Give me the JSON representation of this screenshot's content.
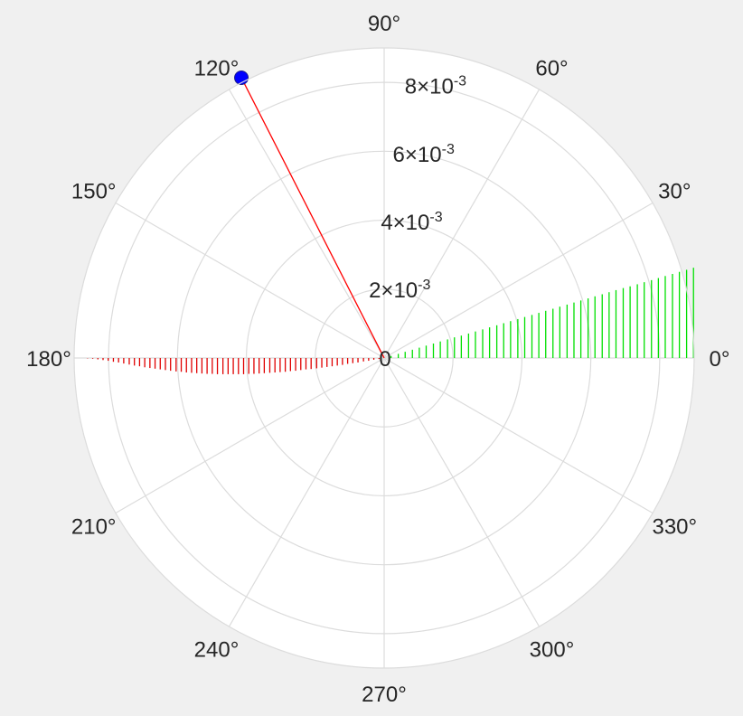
{
  "chart_data": {
    "type": "polar",
    "angle_unit": "°",
    "theta_ticks": [
      0,
      30,
      60,
      90,
      120,
      150,
      180,
      210,
      240,
      270,
      300,
      330
    ],
    "theta_tick_labels": [
      "0°",
      "30°",
      "60°",
      "90°",
      "120°",
      "150°",
      "180°",
      "210°",
      "240°",
      "270°",
      "300°",
      "330°"
    ],
    "r_ticks": [
      0,
      0.002,
      0.004,
      0.006,
      0.008
    ],
    "r_tick_labels": [
      {
        "mantissa": "0",
        "exp": ""
      },
      {
        "mantissa": "2×10",
        "exp": "-3"
      },
      {
        "mantissa": "4×10",
        "exp": "-3"
      },
      {
        "mantissa": "6×10",
        "exp": "-3"
      },
      {
        "mantissa": "8×10",
        "exp": "-3"
      }
    ],
    "rlim": [
      0,
      0.009
    ],
    "grid": true,
    "colors": {
      "positive_stems": "#00e000",
      "negative_stems": "#e00000",
      "vector": "#ff0000",
      "marker": "#0000ff",
      "grid": "#dcdcdc",
      "plot_background": "#ffffff",
      "figure_background": "#f0f0f0"
    },
    "series": [
      {
        "style": "stem",
        "color": "green",
        "x": [
          0.0002,
          0.00041,
          0.00061,
          0.00082,
          0.00102,
          0.00122,
          0.00143,
          0.00163,
          0.00184,
          0.00204,
          0.00224,
          0.00245,
          0.00265,
          0.00286,
          0.00306,
          0.00327,
          0.00347,
          0.00367,
          0.00388,
          0.00408,
          0.00429,
          0.00449,
          0.00469,
          0.0049,
          0.0051,
          0.00531,
          0.00551,
          0.00571,
          0.00592,
          0.00612,
          0.00633,
          0.00653,
          0.00673,
          0.00694,
          0.00714,
          0.00735,
          0.00755,
          0.00776,
          0.00796,
          0.00816,
          0.00837,
          0.00857,
          0.00878,
          0.00898
        ],
        "y": [
          6e-05,
          0.00012,
          0.00018,
          0.00024,
          0.0003,
          0.00036,
          0.00042,
          0.00048,
          0.00054,
          0.0006,
          0.00065,
          0.00071,
          0.00077,
          0.00083,
          0.00089,
          0.00095,
          0.00101,
          0.00107,
          0.00113,
          0.00119,
          0.00125,
          0.00131,
          0.00137,
          0.00143,
          0.00149,
          0.00155,
          0.00161,
          0.00167,
          0.00173,
          0.00179,
          0.00185,
          0.00191,
          0.00197,
          0.00203,
          0.00208,
          0.00214,
          0.0022,
          0.00226,
          0.00232,
          0.00238,
          0.00244,
          0.0025,
          0.00256,
          0.00262
        ]
      },
      {
        "style": "stem",
        "color": "red",
        "x": [
          -0.00015,
          -0.0003,
          -0.00045,
          -0.0006,
          -0.00076,
          -0.00091,
          -0.00106,
          -0.00121,
          -0.00136,
          -0.00151,
          -0.00166,
          -0.00181,
          -0.00196,
          -0.00212,
          -0.00227,
          -0.00242,
          -0.00257,
          -0.00272,
          -0.00287,
          -0.00302,
          -0.00317,
          -0.00332,
          -0.00348,
          -0.00363,
          -0.00378,
          -0.00393,
          -0.00408,
          -0.00423,
          -0.00438,
          -0.00453,
          -0.00468,
          -0.00484,
          -0.00499,
          -0.00514,
          -0.00529,
          -0.00544,
          -0.00559,
          -0.00574,
          -0.00589,
          -0.00604,
          -0.0062,
          -0.00635,
          -0.0065,
          -0.00665,
          -0.0068,
          -0.00695,
          -0.0071,
          -0.00725,
          -0.0074,
          -0.00756,
          -0.00771,
          -0.00786,
          -0.00801,
          -0.00816,
          -0.00831,
          -0.00846,
          -0.00861
        ],
        "y": [
          -3e-05,
          -5e-05,
          -8e-05,
          -0.0001,
          -0.00013,
          -0.00015,
          -0.00017,
          -0.0002,
          -0.00022,
          -0.00024,
          -0.00026,
          -0.00028,
          -0.0003,
          -0.00032,
          -0.00033,
          -0.00035,
          -0.00037,
          -0.00038,
          -0.0004,
          -0.00041,
          -0.00042,
          -0.00043,
          -0.00044,
          -0.00045,
          -0.00046,
          -0.00046,
          -0.00047,
          -0.00047,
          -0.00047,
          -0.00047,
          -0.00047,
          -0.00047,
          -0.00046,
          -0.00046,
          -0.00045,
          -0.00044,
          -0.00043,
          -0.00042,
          -0.0004,
          -0.00039,
          -0.00037,
          -0.00035,
          -0.00033,
          -0.00031,
          -0.00029,
          -0.00027,
          -0.00024,
          -0.00022,
          -0.00019,
          -0.00016,
          -0.00013,
          -0.00011,
          -8e-05,
          -6e-05,
          -4e-05,
          -2e-05,
          -1e-05
        ]
      },
      {
        "style": "vector",
        "color": "red",
        "path": [
          {
            "theta": 0,
            "r": 0
          },
          {
            "theta": 117,
            "r": 0.00022
          },
          {
            "theta": 117,
            "r": 0.00913
          }
        ]
      },
      {
        "style": "marker",
        "color": "blue",
        "points": [
          {
            "theta": 117,
            "r": 0.00913
          }
        ]
      }
    ]
  }
}
